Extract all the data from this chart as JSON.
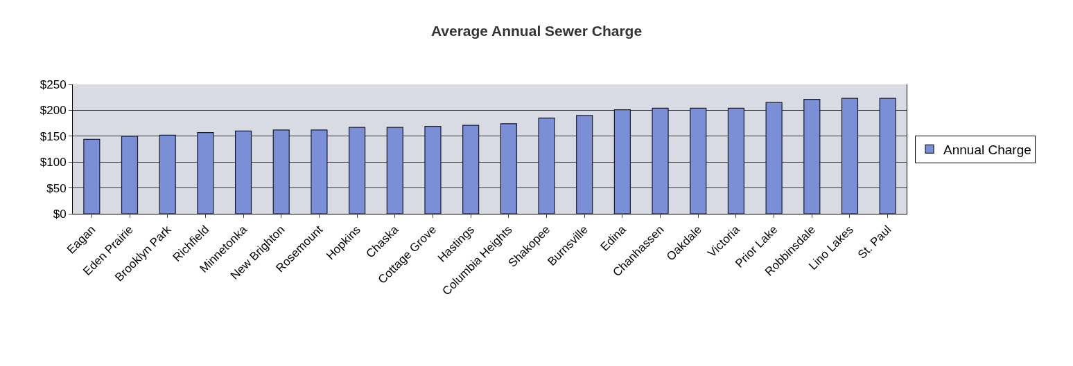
{
  "chart_data": {
    "type": "bar",
    "title": "Average Annual Sewer Charge",
    "categories": [
      "Eagan",
      "Eden Prairie",
      "Brooklyn Park",
      "Richfield",
      "Minnetonka",
      "New Brighton",
      "Rosemount",
      "Hopkins",
      "Chaska",
      "Cottage Grove",
      "Hastings",
      "Columbia Heights",
      "Shakopee",
      "Burnsville",
      "Edina",
      "Chanhassen",
      "Oakdale",
      "Victoria",
      "Prior Lake",
      "Robbinsdale",
      "Lino Lakes",
      "St. Paul"
    ],
    "series": [
      {
        "name": "Annual Charge",
        "color": "#7a8fd6",
        "values": [
          144,
          150,
          152,
          157,
          160,
          162,
          162,
          167,
          167,
          169,
          171,
          174,
          185,
          190,
          201,
          204,
          204,
          204,
          215,
          221,
          223,
          223
        ]
      }
    ],
    "ylim": [
      0,
      250
    ],
    "yticks": [
      {
        "value": 0,
        "label": "$0"
      },
      {
        "value": 50,
        "label": "$50"
      },
      {
        "value": 100,
        "label": "$100"
      },
      {
        "value": 150,
        "label": "$150"
      },
      {
        "value": 200,
        "label": "$200"
      },
      {
        "value": 250,
        "label": "$250"
      }
    ],
    "grid": "y",
    "legend": "right"
  }
}
